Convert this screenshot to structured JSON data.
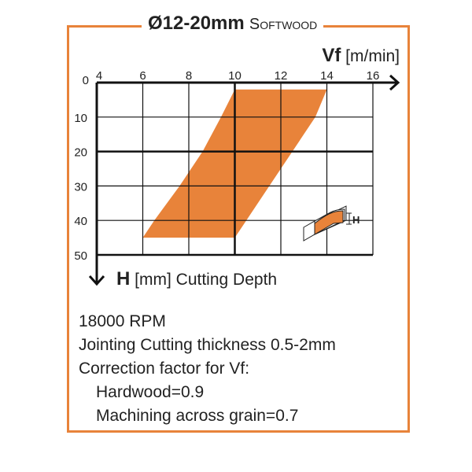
{
  "title": {
    "main": "Ø12-20mm",
    "sub": "Softwood"
  },
  "chart_data": {
    "type": "area",
    "title": "Ø12-20mm Softwood",
    "xlabel": {
      "symbol": "Vf",
      "unit": "[m/min]"
    },
    "ylabel": {
      "symbol": "H",
      "text": "[mm] Cutting Depth"
    },
    "xlim": [
      4,
      16
    ],
    "ylim": [
      0,
      50
    ],
    "y_inverted": true,
    "xticks": [
      4,
      6,
      8,
      10,
      12,
      14,
      16
    ],
    "yticks": [
      0,
      10,
      20,
      30,
      40,
      50
    ],
    "grid": true,
    "fill_color": "#e8833a",
    "region": {
      "depth": [
        2,
        10,
        20,
        30,
        40,
        45
      ],
      "vf_min": [
        10,
        9.4,
        8.6,
        7.6,
        6.5,
        6
      ],
      "vf_max": [
        14,
        13.5,
        12.5,
        11.5,
        10.5,
        10
      ]
    },
    "inset_icon": "workpiece-profile-icon",
    "inset_label": "H"
  },
  "notes": {
    "rpm": "18000 RPM",
    "thickness": "Jointing Cutting thickness 0.5-2mm",
    "correction": "Correction factor for Vf:",
    "hardwood": "Hardwood=0.9",
    "across_grain": "Machining across grain=0.7"
  },
  "colors": {
    "accent": "#e8833a",
    "text": "#222222"
  }
}
